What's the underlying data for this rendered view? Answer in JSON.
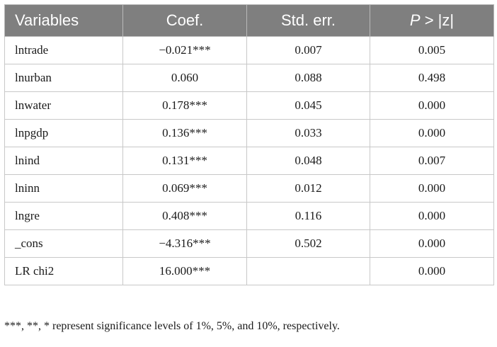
{
  "table": {
    "headers": {
      "variables": "Variables",
      "coef": "Coef.",
      "stderr": "Std. err.",
      "p_italic": "P",
      "p_rest": " > |z|"
    },
    "rows": [
      {
        "variable": "lntrade",
        "coef": "−0.021***",
        "stderr": "0.007",
        "p": "0.005"
      },
      {
        "variable": "lnurban",
        "coef": "0.060",
        "stderr": "0.088",
        "p": "0.498"
      },
      {
        "variable": "lnwater",
        "coef": "0.178***",
        "stderr": "0.045",
        "p": "0.000"
      },
      {
        "variable": "lnpgdp",
        "coef": "0.136***",
        "stderr": "0.033",
        "p": "0.000"
      },
      {
        "variable": "lnind",
        "coef": "0.131***",
        "stderr": "0.048",
        "p": "0.007"
      },
      {
        "variable": "lninn",
        "coef": "0.069***",
        "stderr": "0.012",
        "p": "0.000"
      },
      {
        "variable": "lngre",
        "coef": "0.408***",
        "stderr": "0.116",
        "p": "0.000"
      },
      {
        "variable": "_cons",
        "coef": "−4.316***",
        "stderr": "0.502",
        "p": "0.000"
      },
      {
        "variable": "LR chi2",
        "coef": "16.000***",
        "stderr": "",
        "p": "0.000"
      }
    ]
  },
  "footnote": "***, **, * represent significance levels of 1%, 5%, and 10%, respectively.",
  "colors": {
    "header_bg": "#7f7f7f",
    "header_text": "#ffffff",
    "grid": "#c8c8c8"
  }
}
